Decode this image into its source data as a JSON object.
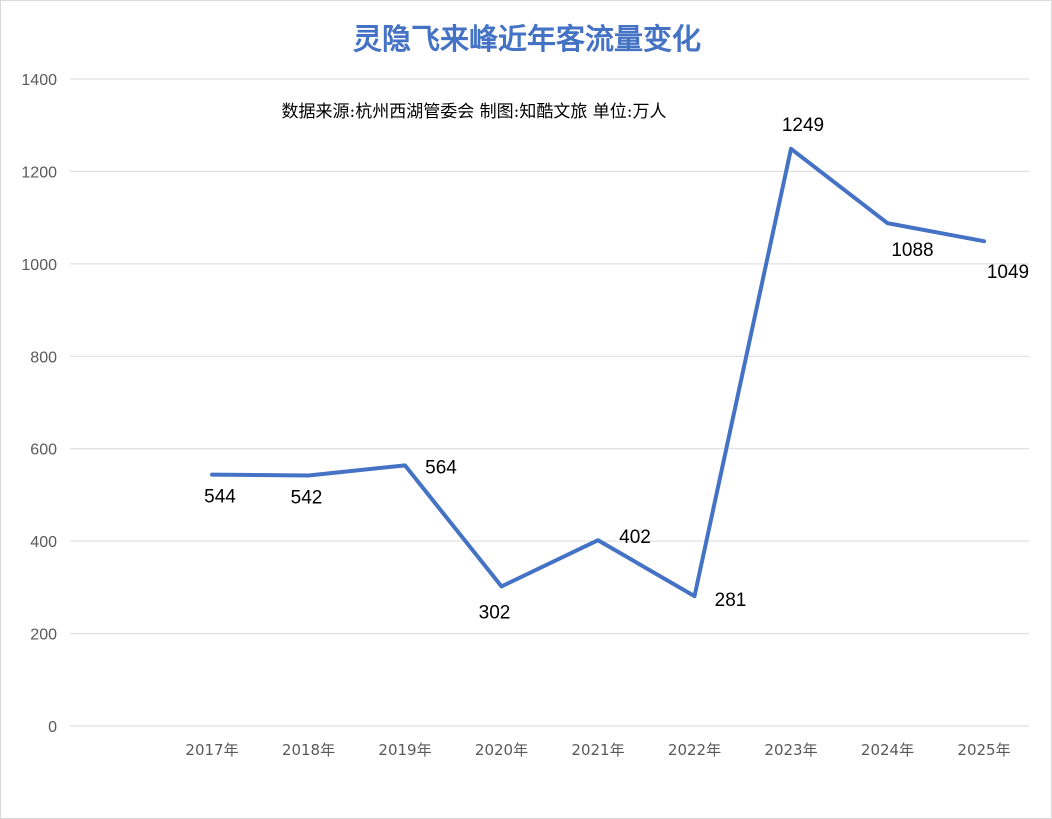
{
  "chart_data": {
    "type": "line",
    "title": "灵隐飞来峰近年客流量变化",
    "subtitle": "数据来源:杭州西湖管委会  制图:知酷文旅  单位:万人",
    "categories": [
      "2017年",
      "2018年",
      "2019年",
      "2020年",
      "2021年",
      "2022年",
      "2023年",
      "2024年",
      "2025年"
    ],
    "series": [
      {
        "values": [
          544,
          542,
          564,
          302,
          402,
          281,
          1249,
          1088,
          1049
        ],
        "color": "#4472c4"
      }
    ],
    "data_labels": [
      "544",
      "542",
      "564",
      "302",
      "402",
      "281",
      "1249",
      "1088",
      "1049"
    ],
    "ylim": [
      0,
      1400
    ],
    "yticks": [
      0,
      200,
      400,
      600,
      800,
      1000,
      1200,
      1400
    ],
    "ytick_labels": [
      "0",
      "200",
      "400",
      "600",
      "800",
      "1000",
      "1200",
      "1400"
    ],
    "grid": true,
    "legend": "none",
    "xlabel": "",
    "ylabel": ""
  }
}
